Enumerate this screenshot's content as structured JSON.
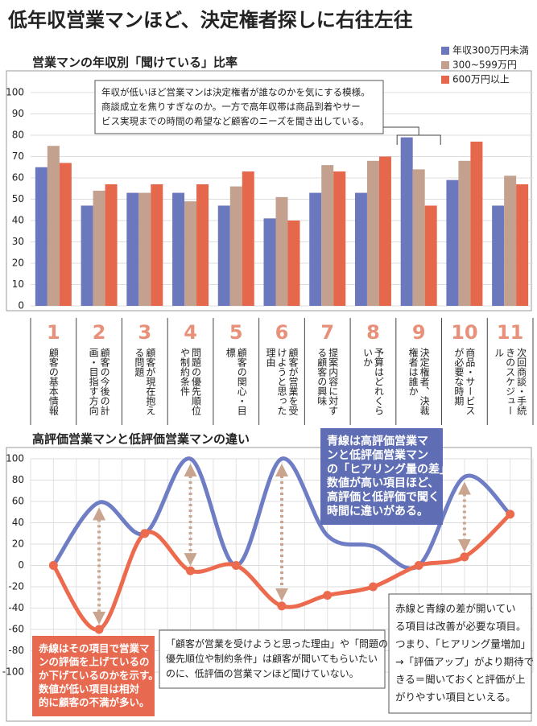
{
  "title": "低年収営業マンほど、決定権者探しに右往左往",
  "chart_data": [
    {
      "type": "bar",
      "title": "営業マンの年収別「聞けている」比率",
      "categories": [
        "1",
        "2",
        "3",
        "4",
        "5",
        "6",
        "7",
        "8",
        "9",
        "10",
        "11"
      ],
      "descriptions": [
        "顧客の基本情報",
        "顧客の今後の計画・目指す方向",
        "顧客が現在抱える問題",
        "問題の優先順位や制約条件",
        "顧客の関心・目標",
        "顧客が営業を受けようと思った理由",
        "提案内容に対する顧客の興味",
        "予算はどれくらいか",
        "決定権者、決裁権者は誰か",
        "商品・サービスが必要な時期",
        "次回商談・手続きのスケジュール"
      ],
      "series": [
        {
          "name": "年収300万円未満",
          "color": "#6c78bd",
          "values": [
            65,
            47,
            53,
            53,
            47,
            41,
            53,
            53,
            79,
            59,
            47
          ]
        },
        {
          "name": "300~599万円",
          "color": "#c3a18e",
          "values": [
            75,
            54,
            53,
            49,
            56,
            51,
            66,
            68,
            64,
            68,
            61
          ]
        },
        {
          "name": "600万円以上",
          "color": "#e5674c",
          "values": [
            67,
            57,
            57,
            57,
            63,
            40,
            63,
            70,
            47,
            77,
            57
          ]
        }
      ],
      "ylim": [
        0,
        100
      ],
      "yticks": [
        0,
        10,
        20,
        30,
        40,
        50,
        60,
        70,
        80,
        90,
        100
      ],
      "grid": true,
      "legend": "top-right",
      "annotation": [
        "年収が低いほど営業マンは決定権者が誰なのかを気にする模様。",
        "商談成立を焦りすぎなのか。一方で高年収帯は商品到着やサー",
        "ビス実現までの時間の希望など顧客のニーズを聞き出している。"
      ]
    },
    {
      "type": "line",
      "title": "高評価営業マンと低評価営業マンの違い",
      "series": [
        {
          "color": "#6f7dc4",
          "values": [
            0,
            59,
            30,
            100,
            0,
            100,
            28,
            18,
            0,
            83,
            48
          ]
        },
        {
          "color": "#ec6a4d",
          "values": [
            0,
            -60,
            30,
            -5,
            0,
            -38,
            -28,
            -20,
            0,
            8,
            48
          ]
        }
      ],
      "ylim": [
        -100,
        100
      ],
      "yticks": [
        -100,
        -80,
        -60,
        -40,
        -20,
        0,
        20,
        40,
        60,
        80,
        100
      ],
      "grid": true,
      "annotations": [
        {
          "fill": "#5f6db4",
          "lines": [
            "青線は高評価営業マ",
            "ンと低評価営業マン",
            "の「ヒアリング量の差」。",
            "数値が高い項目ほど、",
            "高評価と低評価で聞く",
            "時間に違いがある。"
          ]
        },
        {
          "fill": "#e7694f",
          "lines": [
            "赤線はその項目で営業マ",
            "ンの評価を上げているの",
            "か下げているのかを示す。",
            "数値が低い項目は相対",
            "的に顧客の不満が多い。"
          ]
        },
        {
          "fill": "#ffffff",
          "lines": [
            "「顧客が営業を受けようと思った理由」や「問題の",
            "優先順位や制約条件」は顧客が聞いてもらいたい",
            "のに、低評価の営業マンほど聞けていない。"
          ]
        },
        {
          "fill": "#ffffff",
          "lines": [
            "赤線と青線の差が開いてい",
            "る項目は改善が必要な項目。",
            "つまり、「ヒアリング量増加」",
            "→「評価アップ」がより期待で",
            "きる＝聞いておくと評価が上",
            "がりやすい項目といえる。"
          ]
        }
      ]
    }
  ]
}
